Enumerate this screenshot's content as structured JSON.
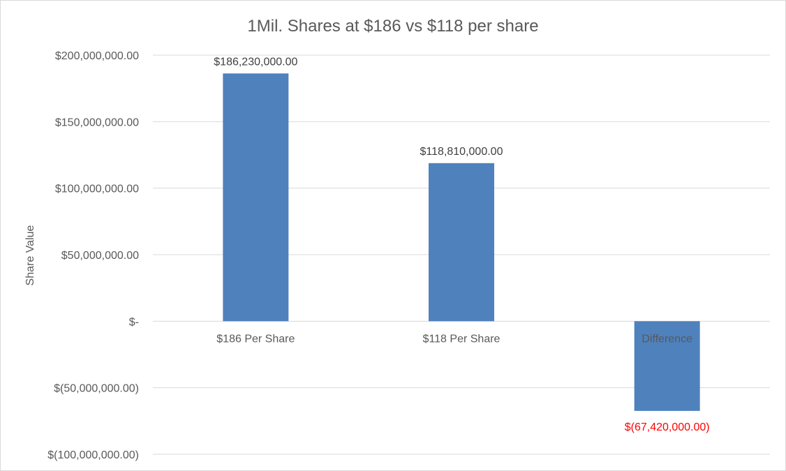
{
  "chart_data": {
    "type": "bar",
    "title": "1Mil. Shares at $186 vs $118 per share",
    "xlabel": "",
    "ylabel": "Share Value",
    "ylim": [
      -100000000,
      200000000
    ],
    "yticks": [
      {
        "value": 200000000,
        "label": "$200,000,000.00"
      },
      {
        "value": 150000000,
        "label": "$150,000,000.00"
      },
      {
        "value": 100000000,
        "label": "$100,000,000.00"
      },
      {
        "value": 50000000,
        "label": "$50,000,000.00"
      },
      {
        "value": 0,
        "label": "$-"
      },
      {
        "value": -50000000,
        "label": "$(50,000,000.00)"
      },
      {
        "value": -100000000,
        "label": "$(100,000,000.00)"
      }
    ],
    "categories": [
      "$186 Per Share",
      "$118 Per Share",
      "Difference"
    ],
    "values": [
      186230000,
      118810000,
      -67420000
    ],
    "data_labels": [
      "$186,230,000.00",
      "$118,810,000.00",
      "$(67,420,000.00)"
    ],
    "grid": true,
    "legend": "none",
    "colors": {
      "bar": "#4f81bd",
      "negative_label": "#ff0000",
      "label": "#404040",
      "grid": "#d9d9d9"
    }
  }
}
